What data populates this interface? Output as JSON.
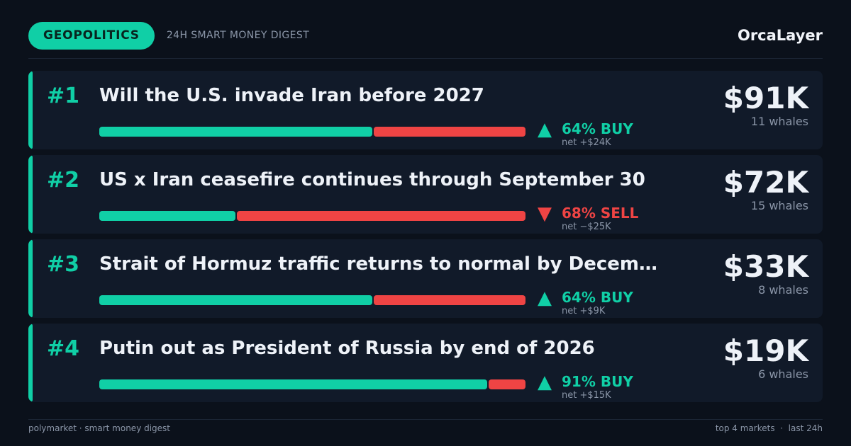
{
  "header": {
    "category": "GEOPOLITICS",
    "subtitle": "24H SMART MONEY DIGEST",
    "brand": "OrcaLayer"
  },
  "colors": {
    "background": "#0b111b",
    "card": "#111a29",
    "accent_buy": "#10cfa6",
    "accent_sell": "#ef4444",
    "muted": "#8b96a8"
  },
  "markets": [
    {
      "rank": "#1",
      "title": "Will the U.S. invade Iran before 2027",
      "buy_fraction": 0.64,
      "direction": "up",
      "arrow": "▲",
      "signal": "64% BUY",
      "net": "net +$24K",
      "volume": "$91K",
      "whales": "11 whales"
    },
    {
      "rank": "#2",
      "title": "US x Iran ceasefire continues through September 30",
      "buy_fraction": 0.32,
      "direction": "down",
      "arrow": "▼",
      "signal": "68% SELL",
      "net": "net −$25K",
      "volume": "$72K",
      "whales": "15 whales"
    },
    {
      "rank": "#3",
      "title": "Strait of Hormuz traffic returns to normal by Decem…",
      "buy_fraction": 0.64,
      "direction": "up",
      "arrow": "▲",
      "signal": "64% BUY",
      "net": "net +$9K",
      "volume": "$33K",
      "whales": "8 whales"
    },
    {
      "rank": "#4",
      "title": "Putin out as President of Russia by end of 2026",
      "buy_fraction": 0.91,
      "direction": "up",
      "arrow": "▲",
      "signal": "91% BUY",
      "net": "net +$15K",
      "volume": "$19K",
      "whales": "6 whales"
    }
  ],
  "footer": {
    "left": "polymarket · smart money digest",
    "right": "top 4 markets  ·  last 24h"
  }
}
